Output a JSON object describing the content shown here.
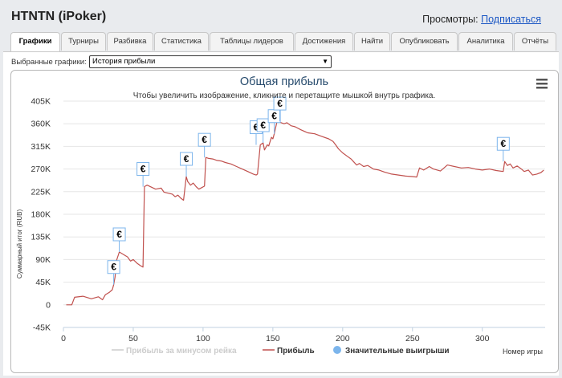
{
  "page": {
    "player_title": "HTNTN (iPoker)",
    "views_label": "Просмотры:",
    "subscribe_link": "Подписаться"
  },
  "tabs": [
    {
      "label": "Графики",
      "active": true
    },
    {
      "label": "Турниры",
      "active": false
    },
    {
      "label": "Разбивка",
      "active": false
    },
    {
      "label": "Статистика",
      "active": false
    },
    {
      "label": "Таблицы лидеров",
      "active": false
    },
    {
      "label": "Достижения",
      "active": false
    },
    {
      "label": "Найти",
      "active": false
    },
    {
      "label": "Опубликовать",
      "active": false
    },
    {
      "label": "Аналитика",
      "active": false
    },
    {
      "label": "Отчёты",
      "active": false
    }
  ],
  "selector": {
    "label": "Выбранные графики:",
    "value": "История прибыли"
  },
  "chart_data": {
    "type": "line",
    "title": "Общая прибыль",
    "subtitle": "Чтобы увеличить изображение, кликните и перетащите мышкой внутрь графика.",
    "ylabel": "Суммарный итог (RUB)",
    "xlabel": "Номер игры",
    "ylim": [
      -45000,
      405000
    ],
    "xlim": [
      0,
      345
    ],
    "y_ticks": [
      -45000,
      0,
      45000,
      90000,
      135000,
      180000,
      225000,
      270000,
      315000,
      360000,
      405000
    ],
    "y_tick_labels": [
      "-45K",
      "0",
      "45K",
      "90K",
      "135K",
      "180K",
      "225K",
      "270K",
      "315K",
      "360K",
      "405K"
    ],
    "x_ticks": [
      0,
      50,
      100,
      150,
      200,
      250,
      300
    ],
    "grid": true,
    "legend_placement": "bottom",
    "series": [
      {
        "name": "Прибыль за минусом рейка",
        "color": "#cccccc",
        "visible": false,
        "x": [],
        "y": []
      },
      {
        "name": "Прибыль",
        "color": "#c0504d",
        "visible": true,
        "x": [
          2,
          6,
          8,
          14,
          20,
          25,
          28,
          30,
          33,
          35,
          36,
          37,
          38,
          40,
          43,
          46,
          48,
          50,
          53,
          55,
          57,
          58,
          60,
          63,
          66,
          70,
          72,
          75,
          78,
          80,
          82,
          84,
          86,
          88,
          89,
          91,
          93,
          95,
          97,
          99,
          101,
          102,
          104,
          107,
          110,
          113,
          116,
          120,
          124,
          128,
          132,
          136,
          138,
          139,
          141,
          143,
          144,
          146,
          147,
          149,
          150,
          151,
          153,
          155,
          158,
          160,
          163,
          166,
          170,
          175,
          180,
          185,
          190,
          193,
          195,
          197,
          200,
          203,
          206,
          208,
          210,
          212,
          215,
          218,
          222,
          226,
          230,
          235,
          240,
          245,
          250,
          253,
          255,
          258,
          262,
          265,
          270,
          275,
          280,
          285,
          290,
          295,
          300,
          305,
          310,
          315,
          316,
          318,
          320,
          322,
          325,
          328,
          330,
          333,
          336,
          339,
          342,
          344
        ],
        "y": [
          0,
          0,
          15000,
          17000,
          12000,
          16000,
          10000,
          20000,
          25000,
          30000,
          40000,
          55000,
          88000,
          105000,
          100000,
          95000,
          87000,
          90000,
          82000,
          78000,
          75000,
          235000,
          238000,
          234000,
          230000,
          232000,
          224000,
          222000,
          220000,
          215000,
          218000,
          212000,
          208000,
          255000,
          245000,
          238000,
          242000,
          235000,
          230000,
          233000,
          236000,
          293000,
          291000,
          290000,
          287000,
          286000,
          283000,
          280000,
          275000,
          270000,
          265000,
          260000,
          258000,
          260000,
          318000,
          322000,
          308000,
          318000,
          316000,
          333000,
          330000,
          340000,
          365000,
          363000,
          360000,
          362000,
          356000,
          354000,
          348000,
          342000,
          340000,
          335000,
          330000,
          325000,
          318000,
          310000,
          302000,
          296000,
          290000,
          284000,
          278000,
          281000,
          275000,
          277000,
          270000,
          268000,
          264000,
          260000,
          258000,
          256000,
          255000,
          254000,
          272000,
          268000,
          275000,
          270000,
          266000,
          278000,
          275000,
          272000,
          273000,
          270000,
          268000,
          270000,
          267000,
          265000,
          285000,
          277000,
          280000,
          272000,
          276000,
          270000,
          265000,
          268000,
          258000,
          260000,
          263000,
          268000
        ]
      },
      {
        "name": "Значительные выигрыши",
        "color": "#7cb5ec",
        "type": "flags",
        "flag_label": "€",
        "x": [
          36,
          40,
          57,
          88,
          101,
          138,
          143,
          151,
          155,
          315
        ],
        "y": [
          40000,
          105000,
          235000,
          255000,
          293000,
          318000,
          322000,
          340000,
          365000,
          285000
        ]
      }
    ]
  },
  "colors": {
    "accent_link": "#1a56c4",
    "profit_line": "#c0504d",
    "big_wins": "#7cb5ec",
    "rake_line": "#cccccc"
  },
  "icons": {
    "chart_menu": "hamburger-menu-icon",
    "flag": "euro-flag-icon"
  }
}
